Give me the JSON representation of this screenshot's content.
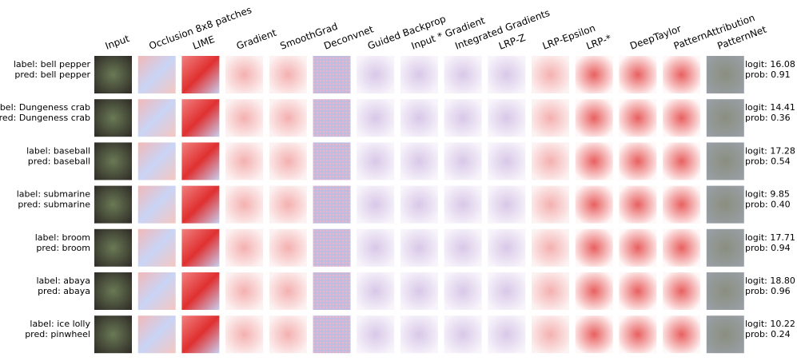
{
  "columns": [
    "Input",
    "Occlusion 8x8 patches",
    "LIME",
    "Gradient",
    "SmoothGrad",
    "Deconvnet",
    "Guided Backprop",
    "Input * Gradient",
    "Integrated Gradients",
    "LRP-Z",
    "LRP-Epsilon",
    "LRP-*",
    "DeepTaylor",
    "PatternAttribution",
    "PatternNet"
  ],
  "rows": [
    {
      "label": "label: bell pepper",
      "pred": "pred: bell pepper",
      "logit": "logit: 16.08",
      "prob": "prob: 0.91"
    },
    {
      "label": "label: Dungeness crab",
      "pred": "pred: Dungeness crab",
      "logit": "logit: 14.41",
      "prob": "prob: 0.36"
    },
    {
      "label": "label: baseball",
      "pred": "pred: baseball",
      "logit": "logit: 17.28",
      "prob": "prob: 0.54"
    },
    {
      "label": "label: submarine",
      "pred": "pred: submarine",
      "logit": "logit: 9.85",
      "prob": "prob: 0.40"
    },
    {
      "label": "label: broom",
      "pred": "pred: broom",
      "logit": "logit: 17.71",
      "prob": "prob: 0.94"
    },
    {
      "label": "label: abaya",
      "pred": "pred: abaya",
      "logit": "logit: 18.80",
      "prob": "prob: 0.96"
    },
    {
      "label": "label: ice lolly",
      "pred": "pred: pinwheel",
      "logit": "logit: 10.22",
      "prob": "prob: 0.24"
    }
  ]
}
